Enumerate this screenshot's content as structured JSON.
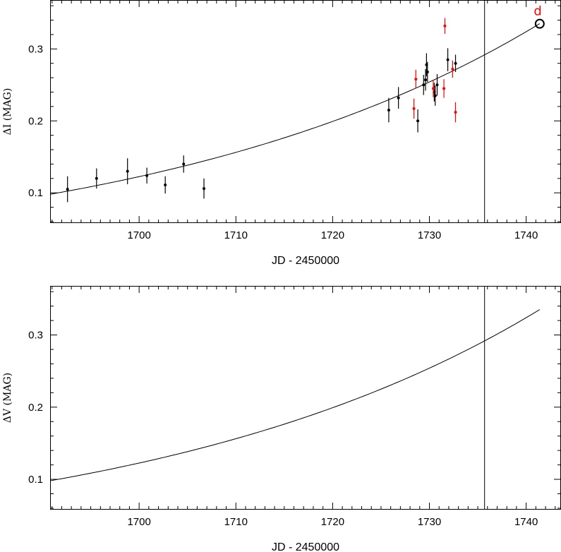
{
  "chart_data": [
    {
      "type": "scatter",
      "title": "",
      "xlabel": "JD - 2450000",
      "ylabel": "ΔI (MAG)",
      "xlim": [
        1690.8,
        1743.6
      ],
      "ylim": [
        0.058,
        0.368
      ],
      "xticks": [
        1700,
        1710,
        1720,
        1730,
        1740
      ],
      "yticks": [
        0.1,
        0.2,
        0.3
      ],
      "grid": false,
      "vline": 1735.7,
      "curve": {
        "x_start": 1690.8,
        "x_end": 1741.4,
        "y_start": 0.098,
        "growth": 0.0243
      },
      "series": [
        {
          "color": "#000000",
          "points": [
            {
              "x": 1692.6,
              "y": 0.105,
              "err": 0.018
            },
            {
              "x": 1695.6,
              "y": 0.12,
              "err": 0.014
            },
            {
              "x": 1698.8,
              "y": 0.13,
              "err": 0.018
            },
            {
              "x": 1700.8,
              "y": 0.124,
              "err": 0.011
            },
            {
              "x": 1702.7,
              "y": 0.111,
              "err": 0.012
            },
            {
              "x": 1704.6,
              "y": 0.14,
              "err": 0.012
            },
            {
              "x": 1706.7,
              "y": 0.106,
              "err": 0.014
            },
            {
              "x": 1725.8,
              "y": 0.215,
              "err": 0.017
            },
            {
              "x": 1726.8,
              "y": 0.232,
              "err": 0.015
            },
            {
              "x": 1728.8,
              "y": 0.2,
              "err": 0.016
            },
            {
              "x": 1729.4,
              "y": 0.25,
              "err": 0.014
            },
            {
              "x": 1729.6,
              "y": 0.257,
              "err": 0.015
            },
            {
              "x": 1729.7,
              "y": 0.278,
              "err": 0.016
            },
            {
              "x": 1729.8,
              "y": 0.268,
              "err": 0.014
            },
            {
              "x": 1730.5,
              "y": 0.24,
              "err": 0.013
            },
            {
              "x": 1730.6,
              "y": 0.235,
              "err": 0.014
            },
            {
              "x": 1730.8,
              "y": 0.25,
              "err": 0.015
            },
            {
              "x": 1731.9,
              "y": 0.285,
              "err": 0.016
            },
            {
              "x": 1732.7,
              "y": 0.28,
              "err": 0.012
            }
          ]
        },
        {
          "color": "#ff0000",
          "points": [
            {
              "x": 1728.4,
              "y": 0.217,
              "err": 0.014
            },
            {
              "x": 1728.6,
              "y": 0.258,
              "err": 0.013
            },
            {
              "x": 1730.4,
              "y": 0.245,
              "err": 0.012
            },
            {
              "x": 1731.5,
              "y": 0.245,
              "err": 0.013
            },
            {
              "x": 1731.6,
              "y": 0.332,
              "err": 0.011
            },
            {
              "x": 1732.4,
              "y": 0.272,
              "err": 0.012
            },
            {
              "x": 1732.7,
              "y": 0.212,
              "err": 0.014
            }
          ]
        }
      ],
      "annotations": [
        {
          "text": "d",
          "color": "#ff0000",
          "x": 1741.2,
          "y": 0.353
        }
      ],
      "open_circle": {
        "x": 1741.4,
        "y": 0.335
      }
    },
    {
      "type": "line",
      "title": "",
      "xlabel": "JD - 2450000",
      "ylabel": "ΔV (MAG)",
      "xlim": [
        1690.8,
        1743.6
      ],
      "ylim": [
        0.058,
        0.368
      ],
      "xticks": [
        1700,
        1710,
        1720,
        1730,
        1740
      ],
      "yticks": [
        0.1,
        0.2,
        0.3
      ],
      "grid": false,
      "vline": 1735.7,
      "curve": {
        "x_start": 1690.8,
        "x_end": 1741.4,
        "y_start": 0.098,
        "growth": 0.0243
      }
    }
  ]
}
